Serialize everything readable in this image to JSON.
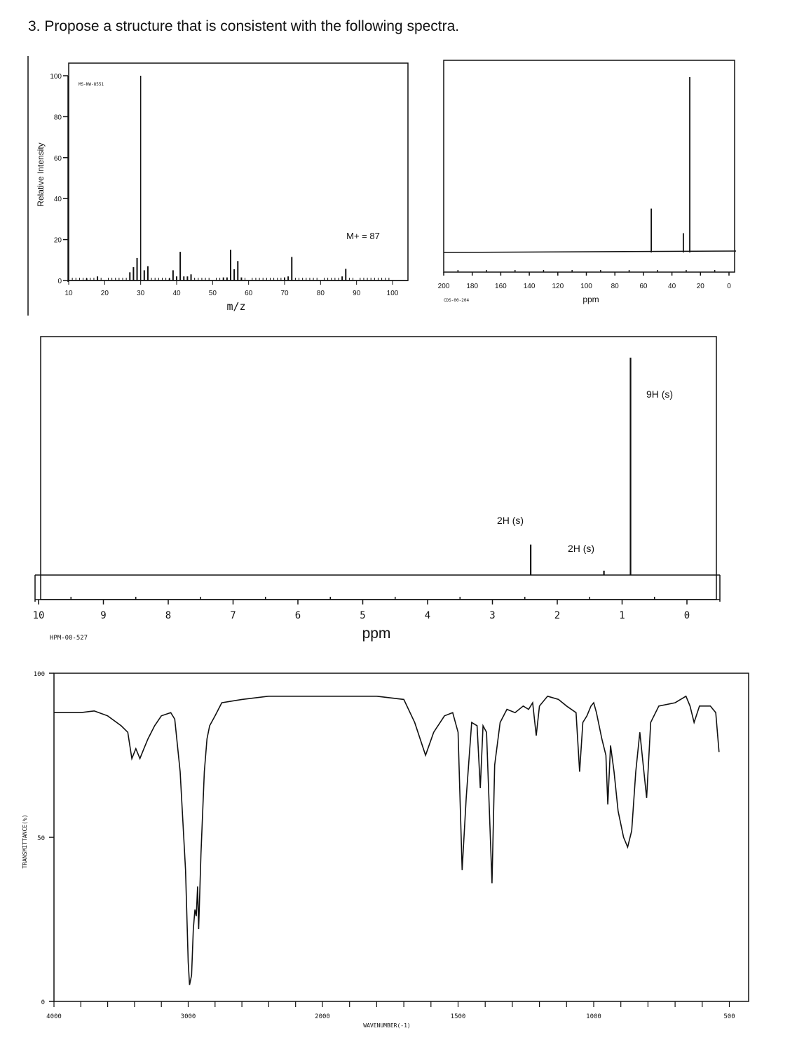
{
  "question": "3. Propose a structure that is consistent with the following spectra.",
  "chart_data": [
    {
      "type": "bar",
      "id": "mass-spectrum",
      "code": "MS-NW-8551",
      "xlabel": "m/z",
      "ylabel": "Relative Intensity",
      "xlim": [
        10,
        100
      ],
      "ylim": [
        0,
        100
      ],
      "xticks": [
        10,
        20,
        30,
        40,
        50,
        60,
        70,
        80,
        90,
        100
      ],
      "yticks": [
        0,
        20,
        40,
        60,
        80,
        100
      ],
      "annotation": "M+ = 87",
      "peaks": [
        [
          15,
          1
        ],
        [
          18,
          2
        ],
        [
          27,
          4
        ],
        [
          28,
          6.5
        ],
        [
          29,
          11
        ],
        [
          30,
          100
        ],
        [
          31,
          5
        ],
        [
          32,
          7
        ],
        [
          38,
          1
        ],
        [
          39,
          5
        ],
        [
          40,
          2
        ],
        [
          41,
          14
        ],
        [
          42,
          2
        ],
        [
          43,
          2
        ],
        [
          44,
          3
        ],
        [
          53,
          1.5
        ],
        [
          54,
          1.5
        ],
        [
          55,
          15
        ],
        [
          56,
          5.5
        ],
        [
          57,
          9.5
        ],
        [
          58,
          1.5
        ],
        [
          70,
          1.5
        ],
        [
          71,
          2
        ],
        [
          72,
          11.5
        ],
        [
          86,
          2
        ],
        [
          87,
          5.7
        ]
      ]
    },
    {
      "type": "bar",
      "id": "carbon-13-nmr",
      "code": "CDS-00-204",
      "xlabel": "ppm",
      "xlim": [
        200,
        0
      ],
      "xticks": [
        200,
        180,
        160,
        140,
        120,
        100,
        80,
        60,
        40,
        20,
        0
      ],
      "peaks": [
        [
          54.5,
          25
        ],
        [
          32,
          11
        ],
        [
          27.5,
          100
        ]
      ]
    },
    {
      "type": "bar",
      "id": "proton-nmr",
      "code": "HPM-00-527",
      "xlabel": "ppm",
      "xlim": [
        10,
        0
      ],
      "xticks": [
        10,
        9,
        8,
        7,
        6,
        5,
        4,
        3,
        2,
        1,
        0
      ],
      "peaks": [
        {
          "ppm": 2.41,
          "height": 14,
          "label": "2H (s)"
        },
        {
          "ppm": 1.28,
          "height": 2,
          "label": "2H (s)"
        },
        {
          "ppm": 0.87,
          "height": 100,
          "label": "9H (s)"
        }
      ]
    },
    {
      "type": "line",
      "id": "ir-spectrum",
      "xlabel": "WAVENUMBER(-1)",
      "ylabel": "TRANSMITTANCE(%)",
      "xlim": [
        4000,
        430
      ],
      "ylim": [
        0,
        100
      ],
      "xticks": [
        4000,
        3000,
        2000,
        1500,
        1000,
        500
      ],
      "xtick_labels": [
        "4000",
        "3000",
        "2000",
        "1500",
        "1000",
        "500"
      ],
      "yticks": [
        0,
        50,
        100
      ],
      "ytick_labels": [
        "0",
        "50",
        "100"
      ],
      "points": [
        [
          4000,
          88
        ],
        [
          3800,
          88
        ],
        [
          3700,
          88.5
        ],
        [
          3600,
          87
        ],
        [
          3500,
          84
        ],
        [
          3450,
          82
        ],
        [
          3420,
          74
        ],
        [
          3390,
          77
        ],
        [
          3360,
          74
        ],
        [
          3330,
          77
        ],
        [
          3300,
          80
        ],
        [
          3250,
          84
        ],
        [
          3200,
          87
        ],
        [
          3130,
          88
        ],
        [
          3100,
          86
        ],
        [
          3060,
          70
        ],
        [
          3020,
          40
        ],
        [
          3000,
          12
        ],
        [
          2990,
          5
        ],
        [
          2975,
          8
        ],
        [
          2962,
          22
        ],
        [
          2950,
          28
        ],
        [
          2940,
          26
        ],
        [
          2930,
          35
        ],
        [
          2922,
          22
        ],
        [
          2905,
          45
        ],
        [
          2880,
          70
        ],
        [
          2860,
          80
        ],
        [
          2840,
          84
        ],
        [
          2800,
          87
        ],
        [
          2750,
          91
        ],
        [
          2600,
          92
        ],
        [
          2400,
          93
        ],
        [
          2200,
          93
        ],
        [
          2000,
          93
        ],
        [
          1800,
          93
        ],
        [
          1700,
          92
        ],
        [
          1660,
          85
        ],
        [
          1620,
          75
        ],
        [
          1590,
          82
        ],
        [
          1550,
          87
        ],
        [
          1520,
          88
        ],
        [
          1500,
          82
        ],
        [
          1485,
          40
        ],
        [
          1470,
          62
        ],
        [
          1450,
          85
        ],
        [
          1430,
          84
        ],
        [
          1418,
          65
        ],
        [
          1408,
          84
        ],
        [
          1395,
          82
        ],
        [
          1375,
          36
        ],
        [
          1365,
          72
        ],
        [
          1345,
          85
        ],
        [
          1320,
          89
        ],
        [
          1290,
          88
        ],
        [
          1260,
          90
        ],
        [
          1240,
          89
        ],
        [
          1225,
          91
        ],
        [
          1212,
          81
        ],
        [
          1200,
          90
        ],
        [
          1170,
          93
        ],
        [
          1130,
          92
        ],
        [
          1100,
          90
        ],
        [
          1065,
          88
        ],
        [
          1052,
          70
        ],
        [
          1040,
          85
        ],
        [
          1025,
          87
        ],
        [
          1010,
          90
        ],
        [
          1000,
          91
        ],
        [
          990,
          88
        ],
        [
          970,
          80
        ],
        [
          955,
          75
        ],
        [
          948,
          60
        ],
        [
          938,
          78
        ],
        [
          925,
          70
        ],
        [
          910,
          58
        ],
        [
          890,
          50
        ],
        [
          875,
          47
        ],
        [
          860,
          52
        ],
        [
          845,
          70
        ],
        [
          830,
          82
        ],
        [
          815,
          70
        ],
        [
          805,
          62
        ],
        [
          790,
          85
        ],
        [
          760,
          90
        ],
        [
          700,
          91
        ],
        [
          660,
          93
        ],
        [
          645,
          90
        ],
        [
          630,
          85
        ],
        [
          610,
          90
        ],
        [
          570,
          90
        ],
        [
          550,
          88
        ],
        [
          538,
          76
        ]
      ]
    }
  ]
}
